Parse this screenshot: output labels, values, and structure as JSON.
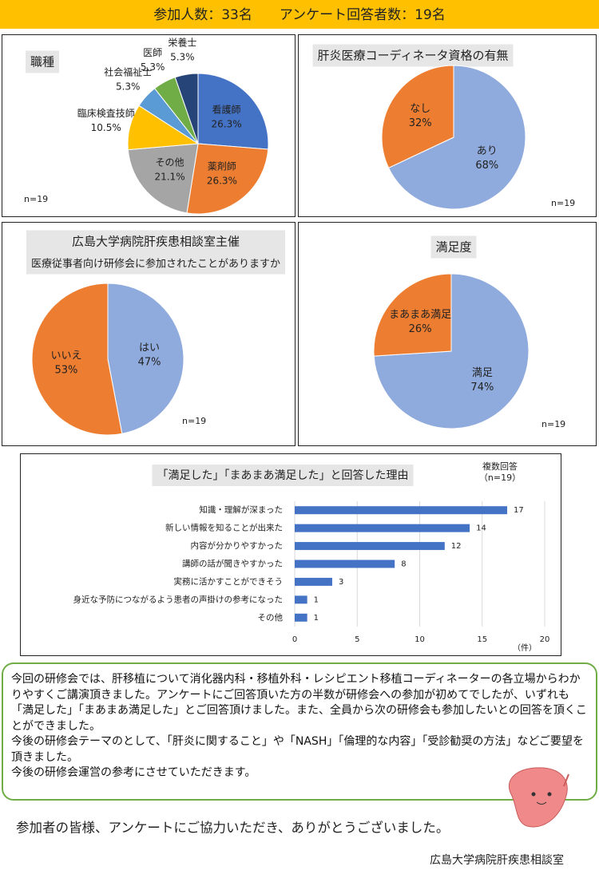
{
  "header": {
    "title": "参加人数：33名　　アンケート回答者数：19名"
  },
  "chart_data": [
    {
      "type": "pie",
      "title": "職種",
      "annotation": "n=19",
      "categories": [
        "看護師",
        "薬剤師",
        "その他",
        "臨床検査技師",
        "社会福祉士",
        "医師",
        "栄養士"
      ],
      "values": [
        26.3,
        26.3,
        21.1,
        10.5,
        5.3,
        5.3,
        5.3
      ],
      "value_labels": [
        "26.3%",
        "26.3%",
        "21.1%",
        "10.5%",
        "5.3%",
        "5.3%",
        "5.3%"
      ],
      "colors": [
        "#4472c4",
        "#ed7d31",
        "#a5a5a5",
        "#ffc000",
        "#5b9bd5",
        "#70ad47",
        "#264478"
      ]
    },
    {
      "type": "pie",
      "title": "肝炎医療コーディネータ資格の有無",
      "annotation": "n=19",
      "categories": [
        "あり",
        "なし"
      ],
      "values": [
        68,
        32
      ],
      "value_labels": [
        "68%",
        "32%"
      ],
      "colors": [
        "#8faadc",
        "#ed7d31"
      ]
    },
    {
      "type": "pie",
      "title": "広島大学病院肝疾患相談室主催",
      "subtitle": "医療従事者向け研修会に参加されたことがありますか",
      "annotation": "n=19",
      "categories": [
        "はい",
        "いいえ"
      ],
      "values": [
        47,
        53
      ],
      "value_labels": [
        "47%",
        "53%"
      ],
      "colors": [
        "#8faadc",
        "#ed7d31"
      ]
    },
    {
      "type": "pie",
      "title": "満足度",
      "annotation": "n=19",
      "categories": [
        "満足",
        "まあまあ満足"
      ],
      "values": [
        74,
        26
      ],
      "value_labels": [
        "74%",
        "26%"
      ],
      "colors": [
        "#8faadc",
        "#ed7d31"
      ]
    },
    {
      "type": "barh",
      "title": "「満足した」「まあまあ満足した」と回答した理由",
      "annotation": "複数回答",
      "annotation2": "（n=19）",
      "x_label": "（件）",
      "categories": [
        "知識・理解が深まった",
        "新しい情報を知ることが出来た",
        "内容が分かりやすかった",
        "講師の話が聞きやすかった",
        "実務に活かすことができそう",
        "身近な予防につながるよう患者の声掛けの参考になった",
        "その他"
      ],
      "values": [
        17,
        14,
        12,
        8,
        3,
        1,
        1
      ],
      "color": "#4472c4",
      "xlim": [
        0,
        20
      ],
      "xticks": [
        0,
        5,
        10,
        15,
        20
      ],
      "grid": true
    }
  ],
  "summary": {
    "paragraphs": [
      "今回の研修会では、肝移植について消化器内科・移植外科・レシピエント移植コーディネーターの各立場からわかりやすくご講演頂きました。アンケートにご回答頂いた方の半数が研修会への参加が初めてでしたが、いずれも「満足した」「まあまあ満足した」とご回答頂けました。また、全員から次の研修会も参加したいとの回答を頂くことができました。",
      "今後の研修会テーマのとして、「肝炎に関すること」や「NASH」「倫理的な内容」「受診勧奨の方法」などご要望を頂きました。",
      "今後の研修会運営の参考にさせていただきます。"
    ]
  },
  "thanks": "参加者の皆様、アンケートにご協力いただき、ありがとうございました。",
  "footer": "広島大学病院肝疾患相談室"
}
